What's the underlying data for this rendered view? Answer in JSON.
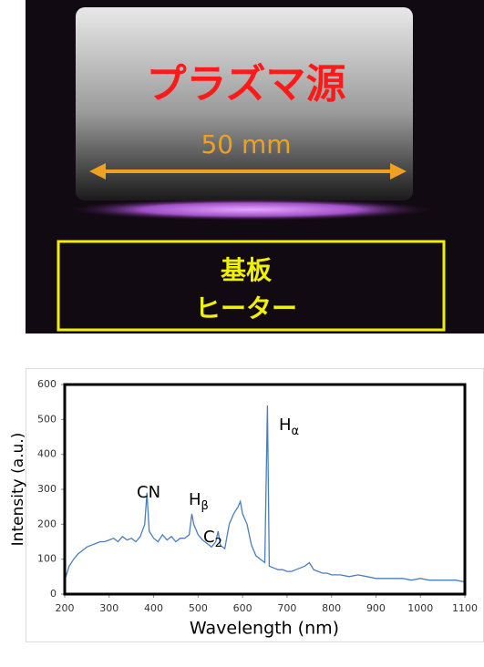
{
  "photo": {
    "source_label": "プラズマ源",
    "dimension": "50 mm",
    "substrate_label": [
      "基板",
      "ヒーター"
    ]
  },
  "chart_data": {
    "type": "line",
    "x_label": "Wavelength (nm)",
    "y_label": "Intensity (a.u.)",
    "annotations": [
      {
        "text": "CN"
      },
      {
        "text": "H",
        "sub": "β"
      },
      {
        "text": "C",
        "sub": "2"
      },
      {
        "text": "H",
        "sub": "α"
      }
    ],
    "color": "#4a7ebb",
    "x": [
      200,
      210,
      220,
      230,
      240,
      250,
      260,
      270,
      280,
      290,
      300,
      310,
      320,
      330,
      340,
      350,
      360,
      370,
      380,
      385,
      390,
      400,
      410,
      420,
      430,
      440,
      450,
      460,
      470,
      480,
      486,
      490,
      500,
      510,
      520,
      530,
      540,
      545,
      550,
      560,
      570,
      580,
      590,
      595,
      600,
      610,
      620,
      630,
      640,
      650,
      656,
      660,
      670,
      680,
      690,
      700,
      710,
      720,
      730,
      740,
      750,
      760,
      770,
      780,
      790,
      800,
      820,
      840,
      860,
      880,
      900,
      920,
      940,
      960,
      980,
      1000,
      1020,
      1040,
      1060,
      1080,
      1100
    ],
    "values": [
      40,
      80,
      100,
      115,
      125,
      135,
      140,
      145,
      150,
      150,
      155,
      160,
      150,
      165,
      155,
      160,
      150,
      165,
      200,
      290,
      180,
      160,
      150,
      170,
      155,
      165,
      150,
      160,
      160,
      170,
      230,
      200,
      170,
      155,
      145,
      135,
      150,
      180,
      140,
      130,
      200,
      230,
      250,
      265,
      230,
      200,
      140,
      110,
      100,
      90,
      540,
      80,
      75,
      70,
      70,
      65,
      65,
      70,
      75,
      80,
      90,
      70,
      65,
      60,
      60,
      55,
      55,
      50,
      55,
      50,
      45,
      45,
      45,
      45,
      40,
      45,
      40,
      40,
      40,
      40,
      35
    ],
    "xlim": [
      200,
      1100
    ],
    "ylim": [
      0,
      600
    ],
    "xticks": [
      200,
      300,
      400,
      500,
      600,
      700,
      800,
      900,
      1000,
      1100
    ],
    "yticks": [
      0,
      100,
      200,
      300,
      400,
      500,
      600
    ]
  }
}
